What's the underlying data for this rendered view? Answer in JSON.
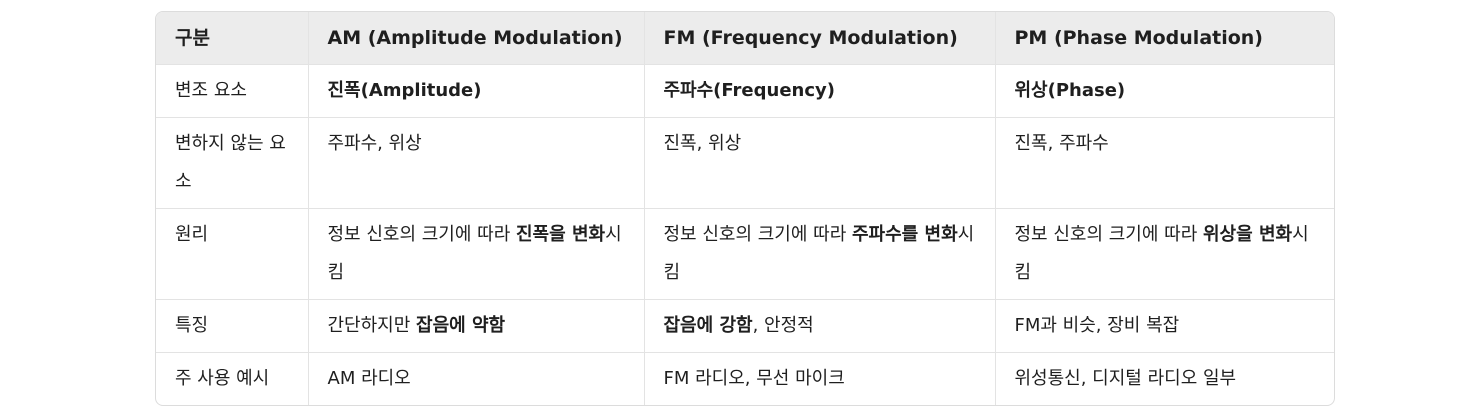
{
  "table": {
    "headers": [
      "구분",
      "AM (Amplitude Modulation)",
      "FM (Frequency Modulation)",
      "PM (Phase Modulation)"
    ],
    "rows": [
      {
        "label": "변조 요소",
        "am": "진폭(Amplitude)",
        "fm": "주파수(Frequency)",
        "pm": "위상(Phase)"
      },
      {
        "label": "변하지 않는 요소",
        "am": "주파수, 위상",
        "fm": "진폭, 위상",
        "pm": "진폭, 주파수"
      },
      {
        "label": "원리",
        "am": {
          "pre": "정보 신호의 크기에 따라 ",
          "strong": "진폭을 변화",
          "post": "시킴"
        },
        "fm": {
          "pre": "정보 신호의 크기에 따라 ",
          "strong": "주파수를 변화",
          "post": "시킴"
        },
        "pm": {
          "pre": "정보 신호의 크기에 따라 ",
          "strong": "위상을 변화",
          "post": "시킴"
        }
      },
      {
        "label": "특징",
        "am": {
          "pre": "간단하지만 ",
          "strong": "잡음에 약함",
          "post": ""
        },
        "fm": {
          "pre": "",
          "strong": "잡음에 강함",
          "post": ", 안정적"
        },
        "pm": {
          "pre": "FM과 비슷, 장비 복잡",
          "strong": "",
          "post": ""
        }
      },
      {
        "label": "주 사용 예시",
        "am": "AM 라디오",
        "fm": "FM 라디오, 무선 마이크",
        "pm": "위성통신, 디지털 라디오 일부"
      }
    ]
  }
}
